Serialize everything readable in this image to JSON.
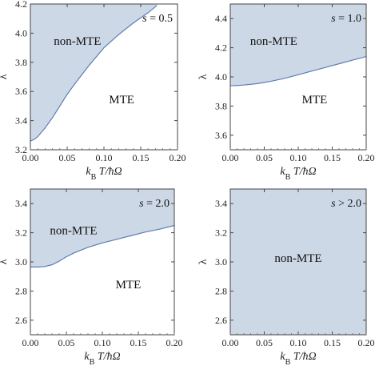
{
  "chart_data": [
    {
      "type": "area",
      "panel": "top-left",
      "xlabel": "k_B T/ħΩ",
      "ylabel": "λ",
      "xlim": [
        0,
        0.2
      ],
      "ylim": [
        3.2,
        4.2
      ],
      "xticks": [
        "0.00",
        "0.05",
        "0.10",
        "0.15",
        "0.20"
      ],
      "yticks": [
        "3.2",
        "3.4",
        "3.6",
        "3.8",
        "4.0",
        "4.2"
      ],
      "ytick_values": [
        3.2,
        3.4,
        3.6,
        3.8,
        4.0,
        4.2
      ],
      "annotation": "s = 0.5",
      "annotation_position": "top-right",
      "labels": {
        "non_mte": "non-MTE",
        "mte": "MTE"
      },
      "boundary": {
        "x": [
          0.0,
          0.005,
          0.01,
          0.02,
          0.03,
          0.04,
          0.05,
          0.06,
          0.08,
          0.1,
          0.12,
          0.14,
          0.16,
          0.172
        ],
        "y": [
          3.26,
          3.27,
          3.29,
          3.35,
          3.42,
          3.5,
          3.58,
          3.65,
          3.78,
          3.9,
          3.99,
          4.07,
          4.14,
          4.19
        ]
      },
      "region_color": "#cdd8e6",
      "line_color": "#5b7fb8"
    },
    {
      "type": "area",
      "panel": "top-right",
      "xlabel": "k_B T/ħΩ",
      "ylabel": "λ",
      "xlim": [
        0,
        0.2
      ],
      "ylim": [
        3.5,
        4.5
      ],
      "xticks": [
        "0.00",
        "0.05",
        "0.10",
        "0.15",
        "0.20"
      ],
      "yticks": [
        "3.6",
        "3.8",
        "4.0",
        "4.2",
        "4.4"
      ],
      "ytick_values": [
        3.6,
        3.8,
        4.0,
        4.2,
        4.4
      ],
      "annotation": "s = 1.0",
      "annotation_position": "top-right",
      "labels": {
        "non_mte": "non-MTE",
        "mte": "MTE"
      },
      "boundary": {
        "x": [
          0.0,
          0.005,
          0.01,
          0.02,
          0.04,
          0.06,
          0.08,
          0.1,
          0.12,
          0.14,
          0.16,
          0.18,
          0.2
        ],
        "y": [
          3.94,
          3.94,
          3.941,
          3.944,
          3.954,
          3.97,
          3.99,
          4.015,
          4.04,
          4.065,
          4.09,
          4.115,
          4.14
        ]
      },
      "region_color": "#cdd8e6",
      "line_color": "#5b7fb8"
    },
    {
      "type": "area",
      "panel": "bottom-left",
      "xlabel": "k_B T/ħΩ",
      "ylabel": "λ",
      "xlim": [
        0,
        0.2
      ],
      "ylim": [
        2.5,
        3.5
      ],
      "xticks": [
        "0.00",
        "0.05",
        "0.10",
        "0.15",
        "0.20"
      ],
      "yticks": [
        "2.6",
        "2.8",
        "3.0",
        "3.2",
        "3.4"
      ],
      "ytick_values": [
        2.6,
        2.8,
        3.0,
        3.2,
        3.4
      ],
      "annotation": "s = 2.0",
      "annotation_position": "top-right",
      "labels": {
        "non_mte": "non-MTE",
        "mte": "MTE"
      },
      "boundary": {
        "x": [
          0.0,
          0.01,
          0.02,
          0.03,
          0.04,
          0.05,
          0.06,
          0.08,
          0.1,
          0.12,
          0.14,
          0.16,
          0.18,
          0.2
        ],
        "y": [
          2.965,
          2.965,
          2.968,
          2.98,
          3.005,
          3.035,
          3.06,
          3.1,
          3.13,
          3.155,
          3.18,
          3.205,
          3.225,
          3.25
        ]
      },
      "region_color": "#cdd8e6",
      "line_color": "#5b7fb8"
    },
    {
      "type": "area",
      "panel": "bottom-right",
      "xlabel": "k_B T/ħΩ",
      "ylabel": "λ",
      "xlim": [
        0,
        0.2
      ],
      "ylim": [
        2.5,
        3.5
      ],
      "xticks": [
        "0.00",
        "0.05",
        "0.10",
        "0.15",
        "0.20"
      ],
      "yticks": [
        "2.6",
        "2.8",
        "3.0",
        "3.2",
        "3.4"
      ],
      "ytick_values": [
        2.6,
        2.8,
        3.0,
        3.2,
        3.4
      ],
      "annotation": "s > 2.0",
      "annotation_position": "top-right",
      "labels": {
        "non_mte": "non-MTE",
        "mte": ""
      },
      "boundary": null,
      "fill_entire": true,
      "region_color": "#cdd8e6",
      "line_color": "#5b7fb8"
    }
  ]
}
